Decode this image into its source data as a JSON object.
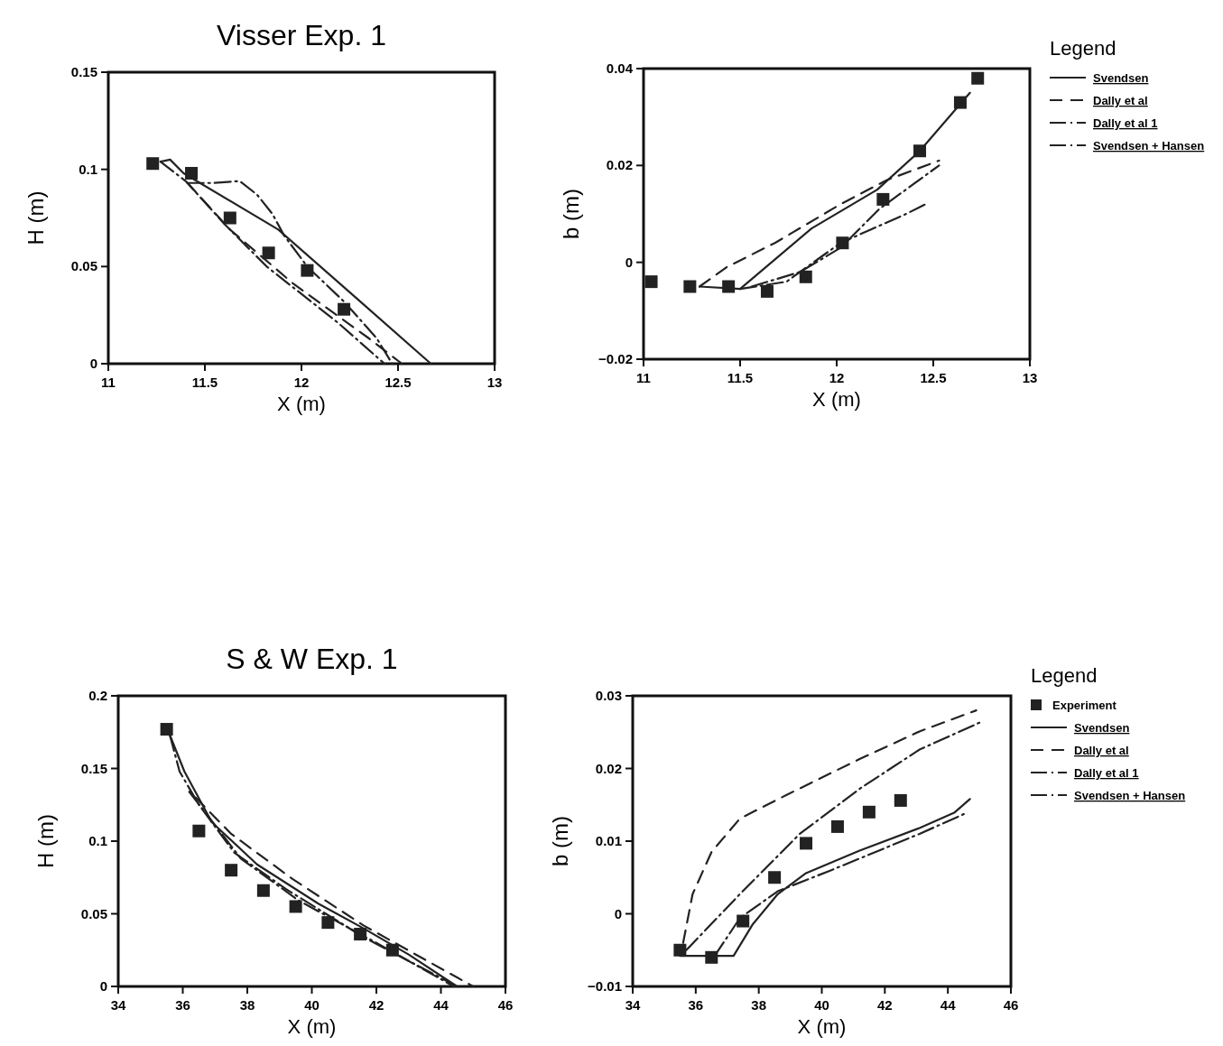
{
  "chart_data": [
    {
      "type": "line",
      "title": "Visser Exp. 1",
      "xlabel": "X (m)",
      "ylabel": "H (m)",
      "xlim": [
        11,
        13
      ],
      "ylim": [
        0,
        0.15
      ],
      "xticks": [
        11,
        11.5,
        12,
        12.5,
        13
      ],
      "yticks": [
        0,
        0.05,
        0.1,
        0.15
      ],
      "grid": false,
      "series": [
        {
          "type": "scatter",
          "marker": "square",
          "color": "#222222",
          "x": [
            11.23,
            11.43,
            11.63,
            11.83,
            12.03,
            12.22
          ],
          "values": [
            0.103,
            0.098,
            0.075,
            0.057,
            0.048,
            0.028
          ]
        },
        {
          "type": "line",
          "line_style": "solid",
          "color": "#222222",
          "x": [
            11.27,
            11.32,
            11.39,
            11.88,
            12.27,
            12.67
          ],
          "values": [
            0.104,
            0.105,
            0.098,
            0.069,
            0.035,
            0
          ]
        },
        {
          "type": "line",
          "line_style": "dashed",
          "color": "#222222",
          "x": [
            11.41,
            11.63,
            11.96,
            12.35,
            12.52
          ],
          "values": [
            0.093,
            0.069,
            0.041,
            0.013,
            0
          ]
        },
        {
          "type": "line",
          "line_style": "dotted",
          "color": "#222222",
          "x": [
            11.27,
            11.4,
            11.6,
            11.82,
            12.19,
            12.43
          ],
          "values": [
            0.104,
            0.094,
            0.072,
            0.05,
            0.021,
            0
          ]
        },
        {
          "type": "line",
          "line_style": "dotted",
          "color": "#222222",
          "x": [
            11.41,
            11.54,
            11.68,
            11.77,
            11.85,
            11.91,
            12.03,
            12.22,
            12.39,
            12.47
          ],
          "values": [
            0.093,
            0.093,
            0.094,
            0.087,
            0.077,
            0.066,
            0.05,
            0.032,
            0.013,
            0
          ]
        }
      ]
    },
    {
      "type": "line",
      "xlabel": "X (m)",
      "ylabel": "b (m)",
      "xlim": [
        11,
        13
      ],
      "ylim": [
        -0.02,
        0.04
      ],
      "xticks": [
        11,
        11.5,
        12,
        12.5,
        13
      ],
      "yticks": [
        {
          "value": -0.02,
          "label": "−0.02"
        },
        0,
        0.02,
        0.04
      ],
      "grid": false,
      "legend": "right",
      "legend_title": "Legend",
      "series": [
        {
          "type": "scatter",
          "marker": "square",
          "color": "#222222",
          "x": [
            11.04,
            11.24,
            11.44,
            11.64,
            11.84,
            12.03,
            12.24,
            12.43,
            12.64,
            12.73
          ],
          "values": [
            -0.004,
            -0.005,
            -0.005,
            -0.006,
            -0.003,
            0.004,
            0.013,
            0.023,
            0.033,
            0.038
          ]
        },
        {
          "name": "Svendsen",
          "type": "line",
          "line_style": "solid",
          "color": "#222222",
          "x": [
            11.29,
            11.5,
            11.87,
            12.21,
            12.43,
            12.69
          ],
          "values": [
            -0.005,
            -0.0055,
            0.007,
            0.015,
            0.023,
            0.035
          ]
        },
        {
          "name": "Dally et al",
          "type": "line",
          "line_style": "dashed",
          "color": "#222222",
          "x": [
            11.29,
            11.43,
            11.68,
            12.02,
            12.26,
            12.53
          ],
          "values": [
            -0.005,
            -0.001,
            0.004,
            0.012,
            0.017,
            0.021
          ]
        },
        {
          "name": "Dally et al 1",
          "type": "line",
          "line_style": "dotted",
          "color": "#222222",
          "x": [
            11.5,
            11.74,
            12.02,
            12.36,
            12.46
          ],
          "values": [
            -0.0055,
            -0.004,
            0.004,
            0.01,
            0.012
          ]
        },
        {
          "name": "Svendsen + Hansen",
          "type": "line",
          "line_style": "dotted",
          "color": "#222222",
          "x": [
            11.56,
            11.81,
            12.02,
            12.22,
            12.53
          ],
          "values": [
            -0.005,
            -0.002,
            0.003,
            0.011,
            0.02
          ]
        }
      ]
    },
    {
      "type": "line",
      "title": "S & W Exp. 1",
      "xlabel": "X (m)",
      "ylabel": "H (m)",
      "xlim": [
        34,
        46
      ],
      "ylim": [
        0,
        0.2
      ],
      "xticks": [
        34,
        36,
        38,
        40,
        42,
        44,
        46
      ],
      "yticks": [
        0,
        0.05,
        0.1,
        0.15,
        0.2
      ],
      "grid": false,
      "series": [
        {
          "type": "scatter",
          "marker": "square",
          "color": "#222222",
          "x": [
            35.5,
            36.5,
            37.5,
            38.5,
            39.5,
            40.5,
            41.5,
            42.5
          ],
          "values": [
            0.177,
            0.107,
            0.08,
            0.066,
            0.055,
            0.044,
            0.036,
            0.025
          ]
        },
        {
          "type": "line",
          "line_style": "solid",
          "color": "#222222",
          "x": [
            35.6,
            36.05,
            36.9,
            38.3,
            40.2,
            41.6,
            43,
            44.5
          ],
          "values": [
            0.173,
            0.148,
            0.113,
            0.084,
            0.057,
            0.04,
            0.022,
            0
          ]
        },
        {
          "type": "line",
          "line_style": "dashed",
          "color": "#222222",
          "x": [
            36.4,
            37.5,
            39.4,
            41.6,
            45
          ],
          "values": [
            0.13,
            0.105,
            0.074,
            0.042,
            0
          ]
        },
        {
          "type": "line",
          "line_style": "dotted",
          "color": "#222222",
          "x": [
            35.6,
            35.9,
            36.5,
            37.6,
            39.2,
            41.6,
            44.5
          ],
          "values": [
            0.173,
            0.148,
            0.125,
            0.092,
            0.067,
            0.034,
            0
          ]
        },
        {
          "type": "line",
          "line_style": "dotted",
          "color": "#222222",
          "x": [
            36.2,
            37.8,
            39.6,
            42,
            44.4
          ],
          "values": [
            0.134,
            0.088,
            0.059,
            0.03,
            0
          ]
        }
      ]
    },
    {
      "type": "line",
      "xlabel": "X (m)",
      "ylabel": "b (m)",
      "xlim": [
        34,
        46
      ],
      "ylim": [
        -0.01,
        0.03
      ],
      "xticks": [
        34,
        36,
        38,
        40,
        42,
        44,
        46
      ],
      "yticks": [
        {
          "value": -0.01,
          "label": "−0.01"
        },
        0,
        0.01,
        0.02,
        0.03
      ],
      "grid": false,
      "legend": "right",
      "legend_title": "Legend",
      "series": [
        {
          "name": "Experiment",
          "type": "scatter",
          "marker": "square",
          "color": "#222222",
          "x": [
            35.5,
            36.5,
            37.5,
            38.5,
            39.5,
            40.5,
            41.5,
            42.5
          ],
          "values": [
            -0.005,
            -0.006,
            -0.001,
            0.005,
            0.0097,
            0.012,
            0.014,
            0.0156
          ]
        },
        {
          "name": "Svendsen",
          "type": "line",
          "line_style": "solid",
          "color": "#222222",
          "x": [
            35.5,
            37.2,
            37.8,
            38.6,
            39.5,
            41.2,
            43.1,
            44.2,
            44.7
          ],
          "values": [
            -0.0058,
            -0.0058,
            -0.0015,
            0.0027,
            0.0056,
            0.0087,
            0.0118,
            0.0139,
            0.0158
          ]
        },
        {
          "name": "Dally et al",
          "type": "line",
          "line_style": "dashed",
          "color": "#222222",
          "x": [
            35.6,
            35.9,
            36.5,
            37.4,
            38.9,
            41.2,
            43.1,
            44.9
          ],
          "values": [
            -0.004,
            0.0027,
            0.0085,
            0.0131,
            0.0164,
            0.0213,
            0.0251,
            0.028
          ]
        },
        {
          "name": "Dally et al 1",
          "type": "line",
          "line_style": "dotted",
          "color": "#222222",
          "x": [
            36.6,
            37.4,
            38.6,
            40.3,
            43.1,
            44.6
          ],
          "values": [
            -0.0058,
            -0.0006,
            0.0031,
            0.006,
            0.011,
            0.0139
          ]
        },
        {
          "name": "Svendsen + Hansen",
          "type": "line",
          "line_style": "dotted",
          "color": "#222222",
          "x": [
            35.7,
            37.4,
            39.3,
            41.2,
            43.1,
            45
          ],
          "values": [
            -0.005,
            0.0027,
            0.011,
            0.0172,
            0.0226,
            0.0263
          ]
        }
      ]
    }
  ]
}
